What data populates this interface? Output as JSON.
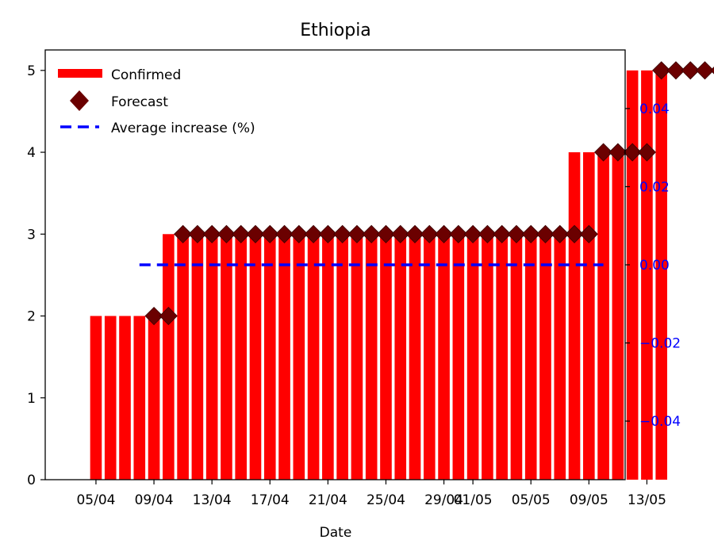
{
  "chart_data": {
    "type": "bar",
    "title": "Ethiopia",
    "xlabel": "Date",
    "ylabel": "",
    "ylim": [
      0,
      5.25
    ],
    "y_right_lim": [
      -0.055,
      0.055
    ],
    "x_tick_labels": [
      "05/04",
      "09/04",
      "13/04",
      "17/04",
      "21/04",
      "25/04",
      "29/04",
      "01/05",
      "05/05",
      "09/05",
      "13/05"
    ],
    "y_ticks": [
      "0",
      "1",
      "2",
      "3",
      "4",
      "5"
    ],
    "y_right_ticks": [
      "−0.04",
      "−0.02",
      "0.00",
      "0.02",
      "0.04"
    ],
    "legend": [
      "Confirmed",
      "Forecast",
      "Average increase (%)"
    ],
    "legend_position": "top-left",
    "colors": {
      "confirmed": "#ff0000",
      "forecast": "#6b0000",
      "average": "#0000ff",
      "right_axis": "#0000ff"
    },
    "confirmed": {
      "start_date": "05/04",
      "values": [
        2,
        2,
        2,
        2,
        2,
        3,
        3,
        3,
        3,
        3,
        3,
        3,
        3,
        3,
        3,
        3,
        3,
        3,
        3,
        3,
        3,
        3,
        3,
        3,
        3,
        3,
        3,
        3,
        3,
        3,
        3,
        3,
        3,
        4,
        4,
        4,
        4,
        5,
        5,
        5
      ]
    },
    "forecast": {
      "start_date": "09/04",
      "values": [
        2,
        2,
        3,
        3,
        3,
        3,
        3,
        3,
        3,
        3,
        3,
        3,
        3,
        3,
        3,
        3,
        3,
        3,
        3,
        3,
        3,
        3,
        3,
        3,
        3,
        3,
        3,
        3,
        3,
        3,
        3,
        4,
        4,
        4,
        4,
        5,
        5,
        5,
        5,
        5
      ]
    },
    "average_increase": {
      "start_date": "08/04",
      "end_date": "10/05",
      "value": 0.0
    }
  }
}
